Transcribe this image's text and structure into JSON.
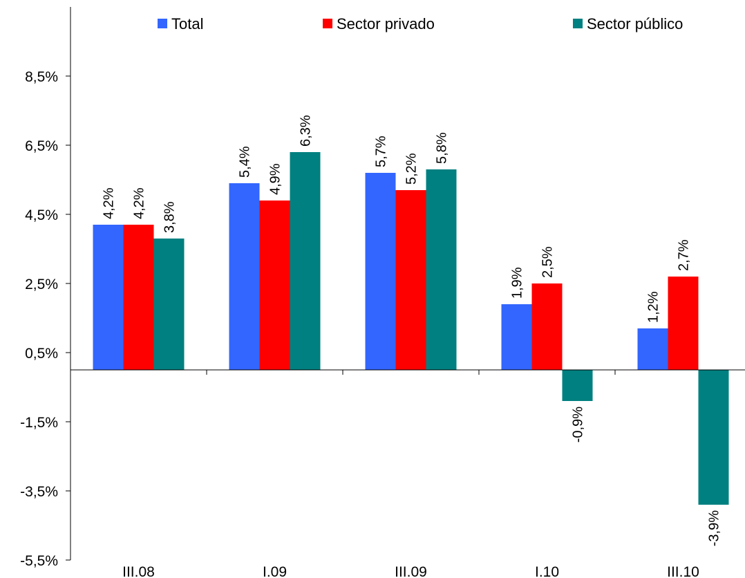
{
  "chart_data": {
    "type": "bar",
    "title": "",
    "xlabel": "",
    "ylabel": "",
    "categories": [
      "III.08",
      "I.09",
      "III.09",
      "I.10",
      "III.10"
    ],
    "series": [
      {
        "name": "Total",
        "color": "#3366FF",
        "values": [
          4.2,
          5.4,
          5.7,
          1.9,
          1.2
        ],
        "labels": [
          "4,2%",
          "5,4%",
          "5,7%",
          "1,9%",
          "1,2%"
        ]
      },
      {
        "name": "Sector privado",
        "color": "#FF0000",
        "values": [
          4.2,
          4.9,
          5.2,
          2.5,
          2.7
        ],
        "labels": [
          "4,2%",
          "4,9%",
          "5,2%",
          "2,5%",
          "2,7%"
        ]
      },
      {
        "name": "Sector público",
        "color": "#008080",
        "values": [
          3.8,
          6.3,
          5.8,
          -0.9,
          -3.9
        ],
        "labels": [
          "3,8%",
          "6,3%",
          "5,8%",
          "-0,9%",
          "-3,9%"
        ]
      }
    ],
    "ylim": [
      -5.5,
      10.5
    ],
    "yticks": [
      -5.5,
      -3.5,
      -1.5,
      0.5,
      2.5,
      4.5,
      6.5,
      8.5
    ],
    "ytick_labels": [
      "-5,5%",
      "-3,5%",
      "-1,5%",
      "0,5%",
      "2,5%",
      "4,5%",
      "6,5%",
      "8,5%"
    ],
    "grid": false,
    "legend_position": "top"
  }
}
